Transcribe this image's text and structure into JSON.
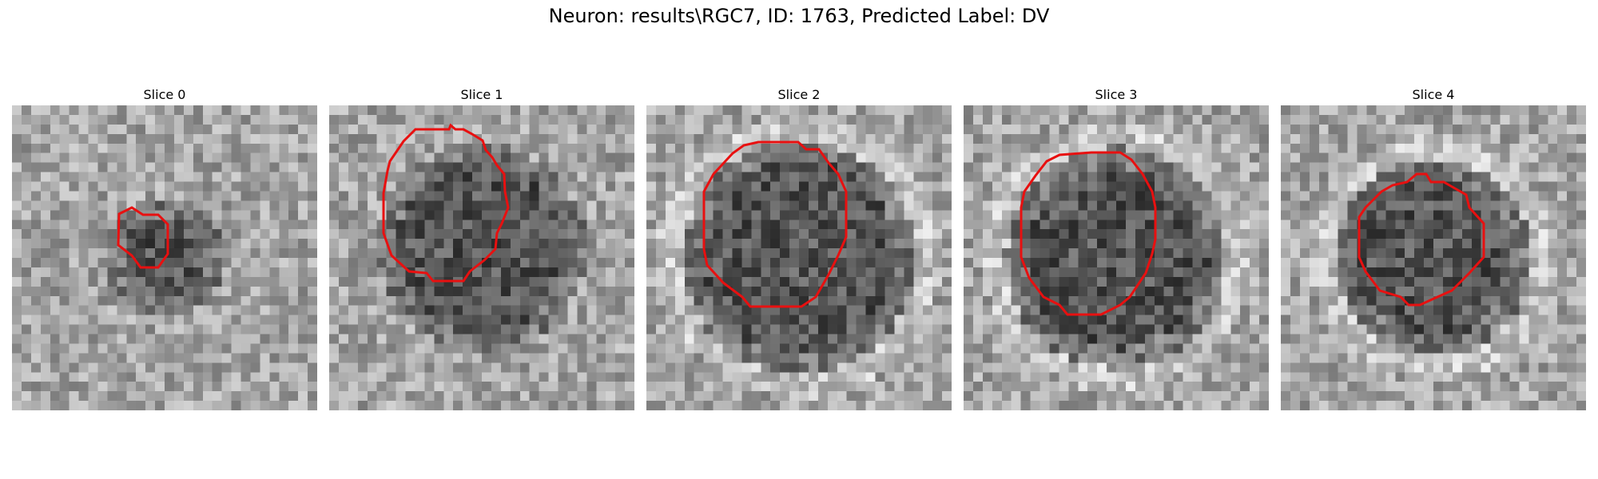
{
  "figure": {
    "title": "Neuron: results\\RGC7, ID: 1763, Predicted Label: DV"
  },
  "panels": [
    {
      "title": "Slice 0",
      "contour_color": "#e81010",
      "cell_radius_frac": 0.14
    },
    {
      "title": "Slice 1",
      "contour_color": "#e81010",
      "cell_radius_frac": 0.28
    },
    {
      "title": "Slice 2",
      "contour_color": "#e81010",
      "cell_radius_frac": 0.32
    },
    {
      "title": "Slice 3",
      "contour_color": "#e81010",
      "cell_radius_frac": 0.3
    },
    {
      "title": "Slice 4",
      "contour_color": "#e81010",
      "cell_radius_frac": 0.26
    }
  ]
}
